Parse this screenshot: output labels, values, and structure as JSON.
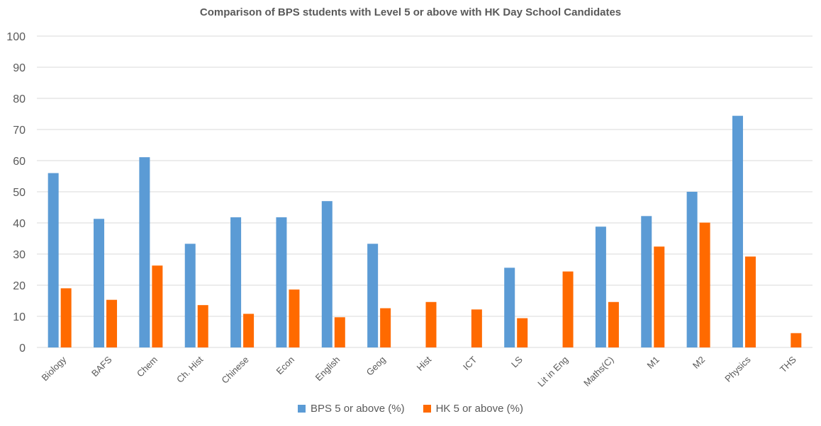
{
  "chart_data": {
    "type": "bar",
    "title": "Comparison of BPS students with Level 5 or above with HK Day School Candidates",
    "xlabel": "",
    "ylabel": "",
    "ylim": [
      0,
      100
    ],
    "yticks": [
      0,
      10,
      20,
      30,
      40,
      50,
      60,
      70,
      80,
      90,
      100
    ],
    "grid": true,
    "legend_position": "bottom",
    "categories": [
      "Biology",
      "BAFS",
      "Chem",
      "Ch. Hist",
      "Chinese",
      "Econ",
      "English",
      "Geog",
      "Hist",
      "ICT",
      "LS",
      "Lit in Eng",
      "Maths(C)",
      "M1",
      "M2",
      "Physics",
      "THS"
    ],
    "series": [
      {
        "name": "BPS 5 or above (%)",
        "color": "#5B9BD5",
        "values": [
          56,
          41.3,
          61.1,
          33.3,
          41.8,
          41.8,
          47,
          33.3,
          null,
          null,
          25.6,
          null,
          38.8,
          42.2,
          50,
          74.4,
          null
        ]
      },
      {
        "name": "HK 5 or above (%)",
        "color": "#FF6A00",
        "values": [
          19,
          15.3,
          26.3,
          13.6,
          10.8,
          18.6,
          9.7,
          12.6,
          14.6,
          12.2,
          9.4,
          24.4,
          14.6,
          32.4,
          40.1,
          29.2,
          4.6
        ]
      }
    ]
  }
}
